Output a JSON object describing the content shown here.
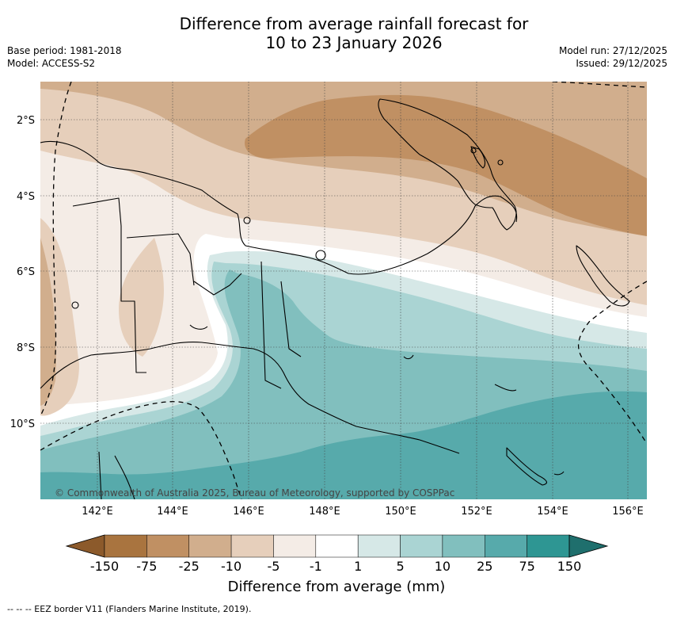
{
  "title": {
    "line1": "Difference from average rainfall forecast for",
    "line2": "10 to 23 January 2026"
  },
  "meta_left": {
    "base_period": "Base period: 1981-2018",
    "model": "Model: ACCESS-S2"
  },
  "meta_right": {
    "model_run": "Model run: 27/12/2025",
    "issued": "Issued: 29/12/2025"
  },
  "map": {
    "lat_labels": [
      "2°S",
      "4°S",
      "6°S",
      "8°S",
      "10°S"
    ],
    "lon_labels": [
      "142°E",
      "144°E",
      "146°E",
      "148°E",
      "150°E",
      "152°E",
      "154°E",
      "156°E"
    ],
    "copyright": "© Commonwealth of Australia 2025, Bureau of Meteorology, supported by COSPPac"
  },
  "legend": {
    "title": "Difference from average (mm)",
    "tick_labels": [
      "-150",
      "-75",
      "-25",
      "-10",
      "-5",
      "-1",
      "1",
      "5",
      "10",
      "25",
      "75",
      "150"
    ],
    "colors": {
      "below_min": "#8c5a2b",
      "bins": [
        "#a9743f",
        "#c09063",
        "#d1ae8d",
        "#e6cfbb",
        "#f4ece6",
        "#ffffff",
        "#d6e8e7",
        "#aad4d3",
        "#81bfbe",
        "#57aaab",
        "#2e9693"
      ],
      "above_max": "#1f6f6d"
    }
  },
  "footer": {
    "eez_note": "-- -- -- EEZ border V11 (Flanders Marine Institute, 2019)."
  }
}
